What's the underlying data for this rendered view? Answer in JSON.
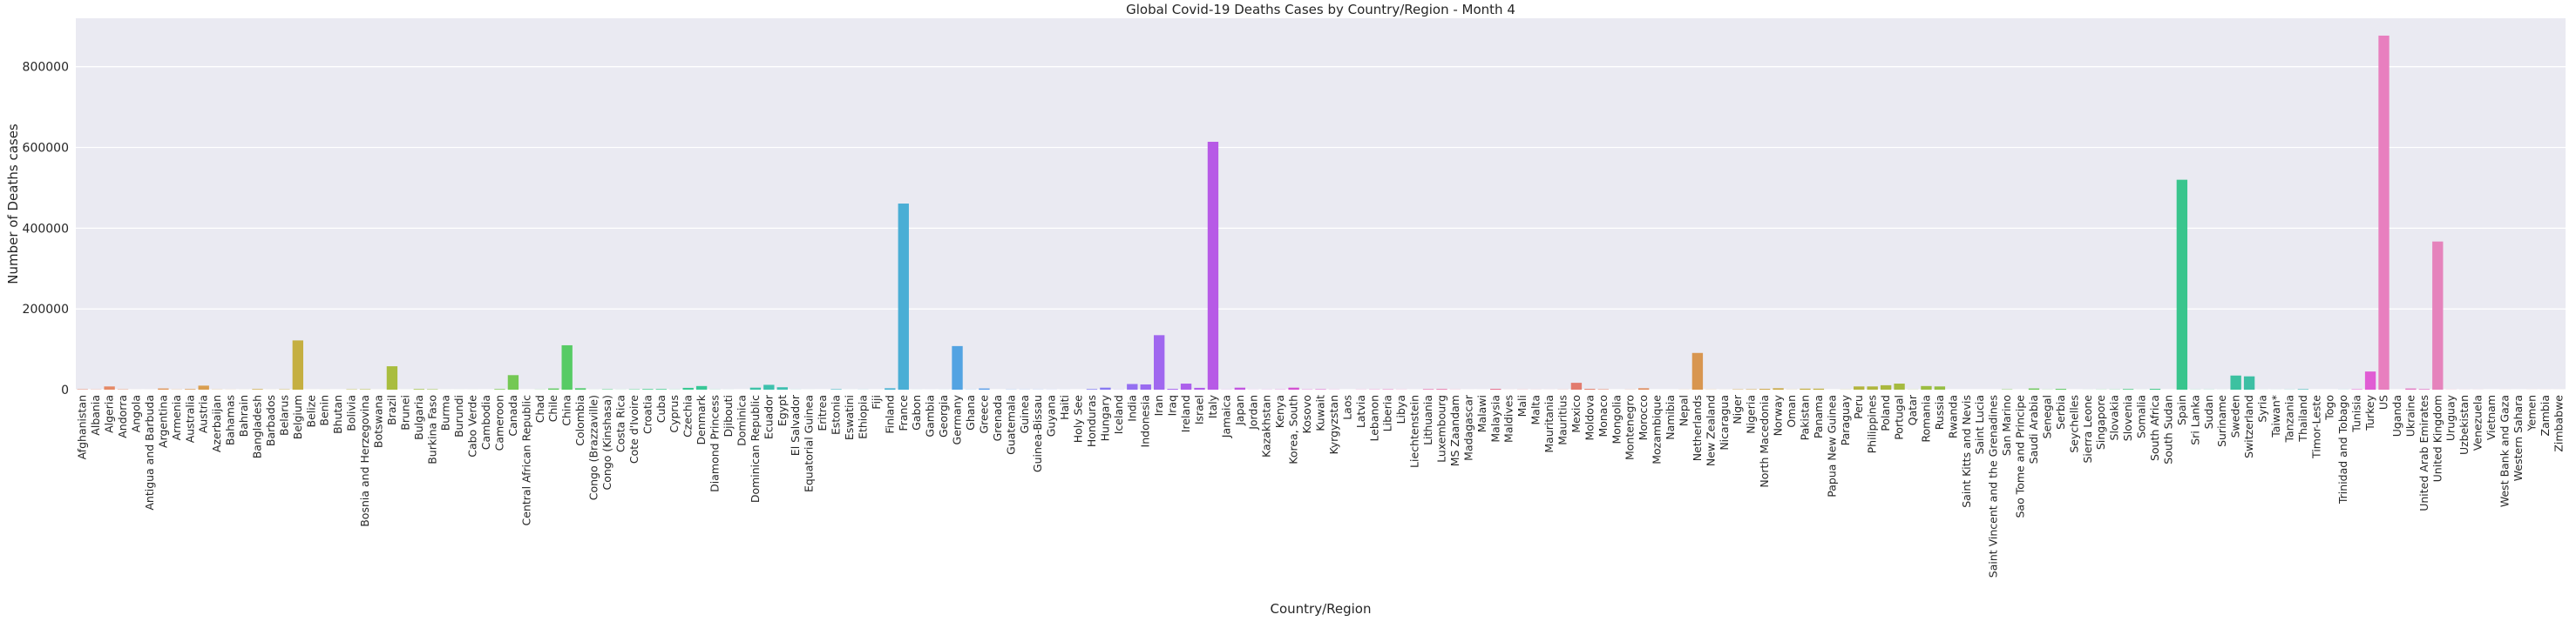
{
  "chart_data": {
    "type": "bar",
    "title": "Global Covid-19 Deaths Cases by Country/Region - Month 4",
    "xlabel": "Country/Region",
    "ylabel": "Number of Deaths cases",
    "ylim": [
      0,
      920000
    ],
    "yticks": [
      0,
      200000,
      400000,
      600000,
      800000
    ],
    "grid": true,
    "background_color": "#eaeaf2",
    "categories": [
      "Afghanistan",
      "Albania",
      "Algeria",
      "Andorra",
      "Angola",
      "Antigua and Barbuda",
      "Argentina",
      "Armenia",
      "Australia",
      "Austria",
      "Azerbaijan",
      "Bahamas",
      "Bahrain",
      "Bangladesh",
      "Barbados",
      "Belarus",
      "Belgium",
      "Belize",
      "Benin",
      "Bhutan",
      "Bolivia",
      "Bosnia and Herzegovina",
      "Botswana",
      "Brazil",
      "Brunei",
      "Bulgaria",
      "Burkina Faso",
      "Burma",
      "Burundi",
      "Cabo Verde",
      "Cambodia",
      "Cameroon",
      "Canada",
      "Central African Republic",
      "Chad",
      "Chile",
      "China",
      "Colombia",
      "Congo (Brazzaville)",
      "Congo (Kinshasa)",
      "Costa Rica",
      "Cote d'Ivoire",
      "Croatia",
      "Cuba",
      "Cyprus",
      "Czechia",
      "Denmark",
      "Diamond Princess",
      "Djibouti",
      "Dominica",
      "Dominican Republic",
      "Ecuador",
      "Egypt",
      "El Salvador",
      "Equatorial Guinea",
      "Eritrea",
      "Estonia",
      "Eswatini",
      "Ethiopia",
      "Fiji",
      "Finland",
      "France",
      "Gabon",
      "Gambia",
      "Georgia",
      "Germany",
      "Ghana",
      "Greece",
      "Grenada",
      "Guatemala",
      "Guinea",
      "Guinea-Bissau",
      "Guyana",
      "Haiti",
      "Holy See",
      "Honduras",
      "Hungary",
      "Iceland",
      "India",
      "Indonesia",
      "Iran",
      "Iraq",
      "Ireland",
      "Israel",
      "Italy",
      "Jamaica",
      "Japan",
      "Jordan",
      "Kazakhstan",
      "Kenya",
      "Korea, South",
      "Kosovo",
      "Kuwait",
      "Kyrgyzstan",
      "Laos",
      "Latvia",
      "Lebanon",
      "Liberia",
      "Libya",
      "Liechtenstein",
      "Lithuania",
      "Luxembourg",
      "MS Zaandam",
      "Madagascar",
      "Malawi",
      "Malaysia",
      "Maldives",
      "Mali",
      "Malta",
      "Mauritania",
      "Mauritius",
      "Mexico",
      "Moldova",
      "Monaco",
      "Mongolia",
      "Montenegro",
      "Morocco",
      "Mozambique",
      "Namibia",
      "Nepal",
      "Netherlands",
      "New Zealand",
      "Nicaragua",
      "Niger",
      "Nigeria",
      "North Macedonia",
      "Norway",
      "Oman",
      "Pakistan",
      "Panama",
      "Papua New Guinea",
      "Paraguay",
      "Peru",
      "Philippines",
      "Poland",
      "Portugal",
      "Qatar",
      "Romania",
      "Russia",
      "Rwanda",
      "Saint Kitts and Nevis",
      "Saint Lucia",
      "Saint Vincent and the Grenadines",
      "San Marino",
      "Sao Tome and Principe",
      "Saudi Arabia",
      "Senegal",
      "Serbia",
      "Seychelles",
      "Sierra Leone",
      "Singapore",
      "Slovakia",
      "Slovenia",
      "Somalia",
      "South Africa",
      "South Sudan",
      "Spain",
      "Sri Lanka",
      "Sudan",
      "Suriname",
      "Sweden",
      "Switzerland",
      "Syria",
      "Taiwan*",
      "Tanzania",
      "Thailand",
      "Timor-Leste",
      "Togo",
      "Trinidad and Tobago",
      "Tunisia",
      "Turkey",
      "US",
      "Uganda",
      "Ukraine",
      "United Arab Emirates",
      "United Kingdom",
      "Uruguay",
      "Uzbekistan",
      "Venezuela",
      "Vietnam",
      "West Bank and Gaza",
      "Western Sahara",
      "Yemen",
      "Zambia",
      "Zimbabwe"
    ],
    "values": [
      1000,
      500,
      8000,
      800,
      50,
      50,
      3000,
      400,
      1500,
      10000,
      400,
      200,
      100,
      1500,
      100,
      800,
      122000,
      50,
      100,
      0,
      800,
      1000,
      50,
      58000,
      50,
      1500,
      1000,
      50,
      50,
      50,
      0,
      1500,
      36000,
      0,
      300,
      3000,
      110000,
      3500,
      100,
      900,
      200,
      800,
      1500,
      1500,
      300,
      4500,
      9000,
      300,
      100,
      0,
      5000,
      12000,
      6000,
      200,
      50,
      0,
      1200,
      50,
      200,
      0,
      3500,
      461000,
      100,
      50,
      100,
      108000,
      300,
      3000,
      0,
      400,
      300,
      300,
      200,
      100,
      0,
      1500,
      5000,
      300,
      14000,
      13000,
      135000,
      2000,
      15000,
      4500,
      614000,
      300,
      5000,
      200,
      300,
      500,
      5000,
      600,
      1000,
      300,
      0,
      300,
      500,
      800,
      300,
      50,
      1200,
      1500,
      300,
      50,
      50,
      2000,
      100,
      300,
      200,
      100,
      300,
      17000,
      2000,
      1000,
      0,
      300,
      3500,
      0,
      0,
      200,
      91000,
      300,
      100,
      800,
      1000,
      2000,
      3500,
      300,
      2500,
      2500,
      0,
      300,
      8000,
      8000,
      11000,
      15000,
      300,
      9000,
      8000,
      0,
      0,
      0,
      0,
      800,
      0,
      3000,
      300,
      2000,
      0,
      100,
      300,
      400,
      1500,
      100,
      2000,
      0,
      520000,
      300,
      300,
      100,
      35000,
      33000,
      100,
      100,
      300,
      1200,
      0,
      0,
      200,
      1000,
      45000,
      877000,
      0,
      3000,
      1500,
      367000,
      300,
      200,
      200,
      0,
      100,
      0,
      100,
      100,
      50
    ],
    "bar_colors": [
      "#e6846e",
      "#e6876a",
      "#e58966",
      "#e38c63",
      "#e28f60",
      "#e1925c",
      "#df9559",
      "#dd9856",
      "#db9b53",
      "#d99e50",
      "#d6a14d",
      "#d4a34b",
      "#d1a648",
      "#cea846",
      "#cbaa44",
      "#c8ad43",
      "#c5af41",
      "#c2b140",
      "#beb33f",
      "#bab53e",
      "#b6b73e",
      "#b2b93e",
      "#aebb3e",
      "#a9bd3f",
      "#a4be40",
      "#9fc041",
      "#9ac143",
      "#94c345",
      "#8ec447",
      "#88c54a",
      "#82c64d",
      "#7bc750",
      "#74c854",
      "#6dc958",
      "#66ca5c",
      "#5eca60",
      "#57cb65",
      "#4fcb6a",
      "#48cb6f",
      "#42cb74",
      "#3ecb79",
      "#3bcb7e",
      "#39ca83",
      "#38ca88",
      "#38c98d",
      "#38c892",
      "#39c797",
      "#3ac69b",
      "#3bc5a0",
      "#3cc4a4",
      "#3dc3a8",
      "#3ec1ad",
      "#3fc0b1",
      "#40beb5",
      "#41bdb9",
      "#42bbbd",
      "#43b9c1",
      "#44b7c5",
      "#45b5c9",
      "#47b3cd",
      "#48b1d1",
      "#4aaed5",
      "#4cacd8",
      "#4ea9dc",
      "#50a6df",
      "#53a3e2",
      "#56a0e5",
      "#599ce8",
      "#5d99ea",
      "#6195ec",
      "#6591ee",
      "#6a8def",
      "#6f89f0",
      "#7585f1",
      "#7b80f2",
      "#817cf2",
      "#8778f2",
      "#8d73f2",
      "#946ff1",
      "#9a6bf0",
      "#a067ef",
      "#a663ed",
      "#ac60eb",
      "#b25de9",
      "#b75ae6",
      "#bd57e3",
      "#c255e0",
      "#c753dc",
      "#cb52d9",
      "#cf51d5",
      "#d350d1",
      "#d650cc",
      "#d950c8",
      "#dc50c3",
      "#de51be",
      "#e052b9",
      "#e253b4",
      "#e354af",
      "#e456aa",
      "#e458a5",
      "#e55aa0",
      "#e55d9b",
      "#e55f96",
      "#e56291",
      "#e5658c",
      "#e56887",
      "#e46b83",
      "#e46e7e",
      "#e3717a",
      "#e37576",
      "#e27872",
      "#e27b6e",
      "#e17e6a",
      "#e18166",
      "#e08463",
      "#df8760",
      "#de8a5c",
      "#dd8d59",
      "#db9056",
      "#d99353",
      "#d89650",
      "#d6994d",
      "#d39c4b",
      "#d19f48",
      "#cea246",
      "#cba444",
      "#c8a743",
      "#c5a941",
      "#c2ac40",
      "#beae3f",
      "#bbb03e",
      "#b7b23e",
      "#b3b43e",
      "#afb63e",
      "#aab83e",
      "#a5ba3f",
      "#a1bb40",
      "#9cbd41",
      "#96be43",
      "#91c045",
      "#8bc147",
      "#85c24a",
      "#7fc34d",
      "#78c450",
      "#71c554",
      "#6ac658",
      "#63c65c",
      "#5cc760",
      "#55c765",
      "#4ec76a",
      "#48c76f",
      "#43c774",
      "#3fc779",
      "#3cc77e",
      "#3ac683",
      "#39c688",
      "#39c58d",
      "#3ac492",
      "#3ac397",
      "#3bc29b",
      "#3cc1a0",
      "#3dbfa4",
      "#3ebea8",
      "#3fbcad",
      "#40bbb1",
      "#41b9b5",
      "#42b7b9",
      "#43b5bd",
      "#44b3c1",
      "#e65ad0",
      "#e05cd4",
      "#e87fbf",
      "#e57cc1",
      "#e279c3",
      "#df76c5",
      "#e583bc",
      "#e68ab8",
      "#e691b4",
      "#e698b0"
    ]
  }
}
